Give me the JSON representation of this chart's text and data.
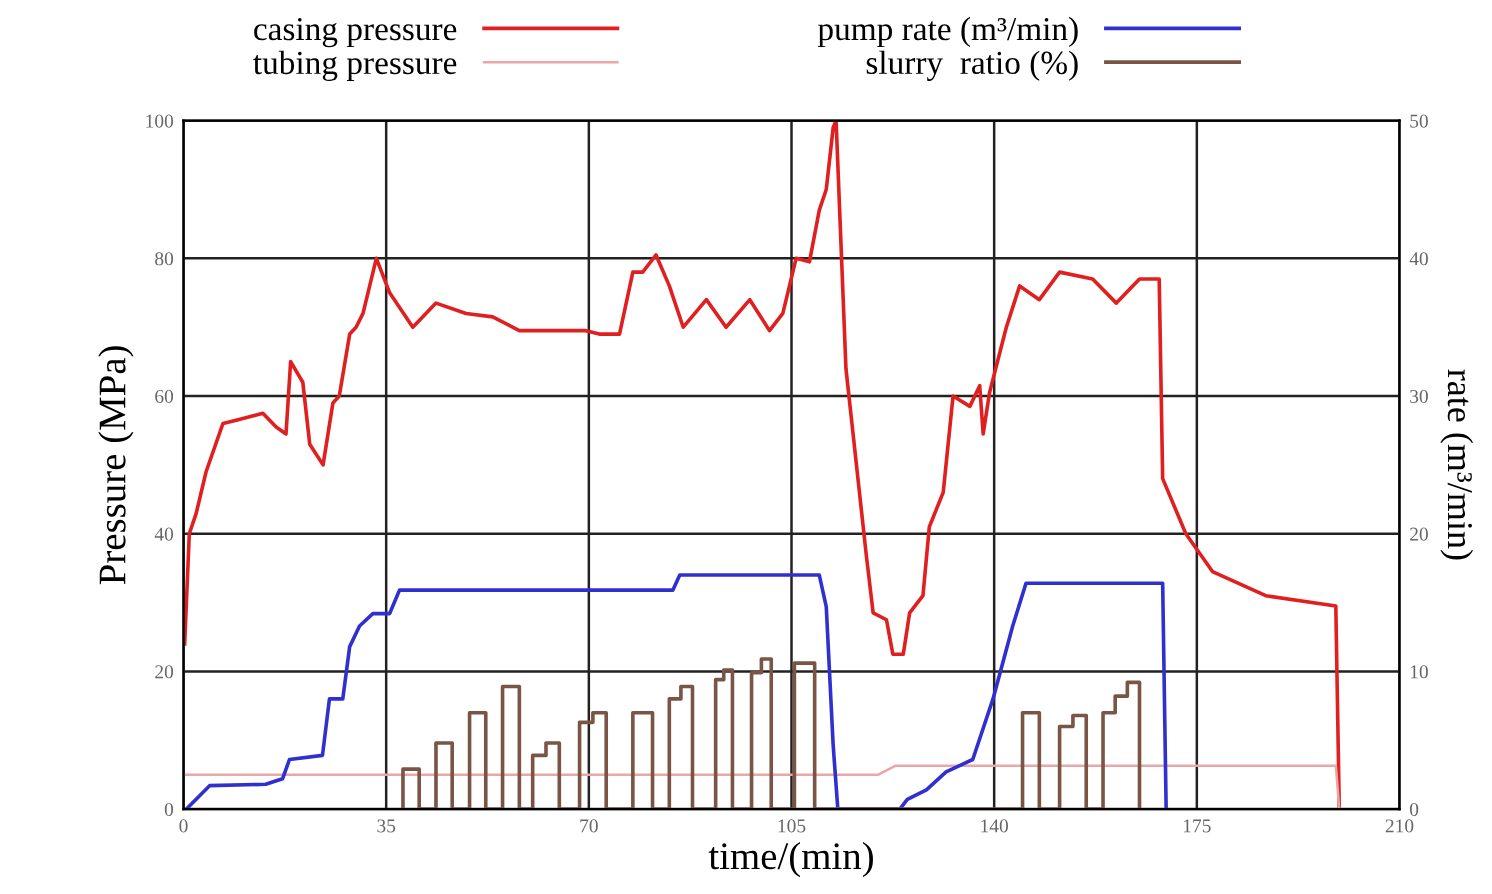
{
  "chart_data": {
    "type": "line",
    "xlabel": "time/(min)",
    "ylabel": "Pressure (MPa)",
    "y2label": "rate (m³/min)",
    "xlim": [
      0,
      210
    ],
    "xticks": [
      0,
      35,
      70,
      105,
      140,
      175,
      210
    ],
    "ylim": [
      0,
      100
    ],
    "yticks": [
      0,
      20,
      40,
      60,
      80,
      100
    ],
    "y2lim": [
      0,
      50
    ],
    "y2ticks": [
      0,
      10,
      20,
      30,
      40,
      50
    ],
    "grid": true,
    "legend": "top",
    "series": [
      {
        "name": "casing pressure",
        "color": "#e02020",
        "x": [
          0.2,
          1,
          2.2,
          3.9,
          6.8,
          9.1,
          11.4,
          13.7,
          16,
          17.7,
          18.5,
          20.6,
          21.8,
          24.1,
          25.8,
          26.9,
          28.7,
          29.8,
          31,
          33.3,
          35.6,
          39.6,
          43.6,
          48.8,
          53.4,
          58,
          62.6,
          69.5,
          71.8,
          75.3,
          77.6,
          79.3,
          81.6,
          83.9,
          86.3,
          90.3,
          93.7,
          97.8,
          101.2,
          103.5,
          105.8,
          108.1,
          109.8,
          111,
          112.2,
          112.7,
          114.4,
          117.9,
          119.1,
          121.4,
          122.5,
          124.3,
          125.4,
          127.7,
          128.8,
          131.2,
          132.9,
          135.8,
          137.5,
          138.1,
          139.2,
          142.1,
          144.4,
          147.8,
          151.3,
          157,
          161.1,
          165.1,
          168.5,
          169.1,
          173.1,
          177.7,
          186.9,
          199,
          199.6
        ],
        "values": [
          24,
          40,
          43,
          49,
          56,
          56.5,
          57,
          57.5,
          55.5,
          54.5,
          65,
          62,
          53,
          50,
          59,
          60,
          69,
          70,
          72,
          80,
          75,
          70,
          73.5,
          72,
          71.5,
          69.5,
          69.5,
          69.5,
          69,
          69,
          78,
          78,
          80.5,
          76,
          70,
          74,
          70,
          74,
          69.5,
          72,
          80,
          79.5,
          87,
          90,
          99,
          100,
          64,
          37,
          28.5,
          27.5,
          22.5,
          22.5,
          28.5,
          31,
          41,
          46,
          60,
          58.5,
          61.5,
          54.5,
          60.5,
          70,
          76,
          74,
          78,
          77,
          73.5,
          77,
          77,
          48,
          40,
          34.5,
          31,
          29.5,
          0
        ]
      },
      {
        "name": "tubing pressure",
        "color": "#e8a8a8",
        "x": [
          0,
          120,
          123,
          199,
          199.6
        ],
        "values": [
          5,
          5,
          6.3,
          6.3,
          0
        ]
      },
      {
        "name": "pump rate (m³/min)",
        "color": "#3030d0",
        "axis": "y2",
        "x": [
          0.5,
          4.5,
          14.2,
          17.1,
          18.3,
          24,
          25.2,
          27.5,
          28.7,
          30.4,
          32.7,
          35.6,
          37.3,
          84.5,
          85.7,
          109.8,
          111,
          112.2,
          113,
          123.7,
          125,
          128.3,
          131.7,
          136.3,
          139.8,
          143.2,
          145.5,
          169.1,
          169.7
        ],
        "values": [
          0,
          1.7,
          1.8,
          2.2,
          3.6,
          3.9,
          8,
          8,
          11.8,
          13.3,
          14.2,
          14.2,
          15.9,
          15.9,
          17,
          17,
          14.7,
          4.6,
          0,
          0,
          0.7,
          1.4,
          2.7,
          3.6,
          8,
          13.3,
          16.4,
          16.4,
          0
        ]
      },
      {
        "name": "slurry  ratio (%)",
        "color": "#7a5545",
        "axis": "y2",
        "x": [
          37.9,
          37.9,
          40.7,
          40.7,
          43.6,
          43.6,
          46.4,
          46.4,
          49.4,
          49.4,
          52.2,
          52.2,
          55.1,
          55.1,
          58,
          58,
          60.3,
          60.3,
          62.6,
          62.6,
          64.9,
          64.9,
          68.4,
          68.4,
          70.7,
          70.7,
          73,
          73,
          77.6,
          77.6,
          81,
          81,
          83.9,
          83.9,
          85.9,
          85.9,
          87.9,
          87.9,
          91.9,
          91.9,
          93.3,
          93.3,
          94.8,
          94.8,
          98.1,
          98.1,
          99.8,
          99.8,
          101.5,
          101.5,
          105.5,
          105.5,
          109,
          109,
          144.9,
          144.9,
          147.8,
          147.8,
          151.3,
          151.3,
          153.6,
          153.6,
          155.9,
          155.9,
          158.8,
          158.8,
          160.9,
          160.9,
          163,
          163,
          165.1,
          165.1
        ],
        "values": [
          0,
          2.9,
          2.9,
          0,
          0,
          4.8,
          4.8,
          0,
          0,
          7,
          7,
          0,
          0,
          8.9,
          8.9,
          0,
          0,
          3.9,
          3.9,
          4.8,
          4.8,
          0,
          0,
          6.3,
          6.3,
          7,
          7,
          0,
          0,
          7,
          7,
          0,
          0,
          8,
          8,
          8.9,
          8.9,
          0,
          0,
          9.4,
          9.4,
          10.1,
          10.1,
          0,
          0,
          9.9,
          9.9,
          10.9,
          10.9,
          0,
          0,
          10.6,
          10.6,
          0,
          0,
          7,
          7,
          0,
          0,
          6,
          6,
          6.8,
          6.8,
          0,
          0,
          7,
          7,
          8.2,
          8.2,
          9.2,
          9.2,
          0
        ]
      }
    ]
  }
}
